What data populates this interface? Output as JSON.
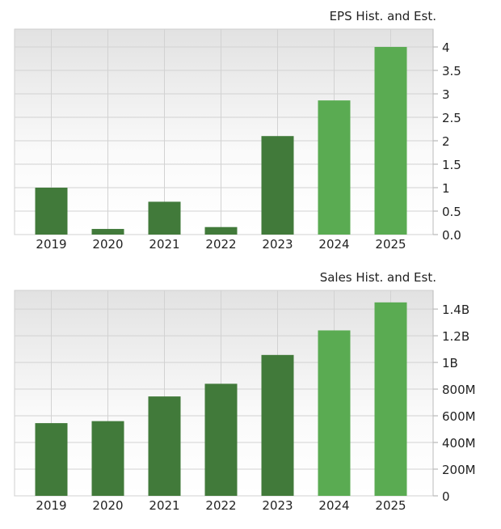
{
  "chart_data": [
    {
      "type": "bar",
      "title": "EPS Hist. and Est.",
      "categories": [
        "2019",
        "2020",
        "2021",
        "2022",
        "2023",
        "2024",
        "2025"
      ],
      "values": [
        1.0,
        0.12,
        0.7,
        0.16,
        2.1,
        2.86,
        4.0
      ],
      "estimate": [
        false,
        false,
        false,
        false,
        false,
        true,
        true
      ],
      "ylim": [
        0,
        4.38
      ],
      "yticks": [
        0,
        0.5,
        1,
        1.5,
        2,
        2.5,
        3,
        3.5,
        4
      ],
      "ytick_labels": [
        "0.0",
        "0.5",
        "1",
        "1.5",
        "2",
        "2.5",
        "3",
        "3.5",
        "4"
      ],
      "y_axis_position": "right",
      "grid": true,
      "xlabel": "",
      "ylabel": ""
    },
    {
      "type": "bar",
      "title": "Sales Hist. and Est.",
      "categories": [
        "2019",
        "2020",
        "2021",
        "2022",
        "2023",
        "2024",
        "2025"
      ],
      "values": [
        545000000,
        560000000,
        745000000,
        840000000,
        1056000000,
        1240000000,
        1450000000
      ],
      "estimate": [
        false,
        false,
        false,
        false,
        false,
        true,
        true
      ],
      "ylim": [
        0,
        1540000000
      ],
      "yticks": [
        0,
        200000000,
        400000000,
        600000000,
        800000000,
        1000000000,
        1200000000,
        1400000000
      ],
      "ytick_labels": [
        "0",
        "200M",
        "400M",
        "600M",
        "800M",
        "1B",
        "1.2B",
        "1.4B"
      ],
      "y_axis_position": "right",
      "grid": true,
      "xlabel": "",
      "ylabel": ""
    }
  ],
  "colors": {
    "historical": "#417a3a",
    "estimate": "#5aab52",
    "grid": "#d2d2d2",
    "plot_bg_top": "#e2e2e2",
    "plot_bg_bottom": "#ffffff"
  }
}
